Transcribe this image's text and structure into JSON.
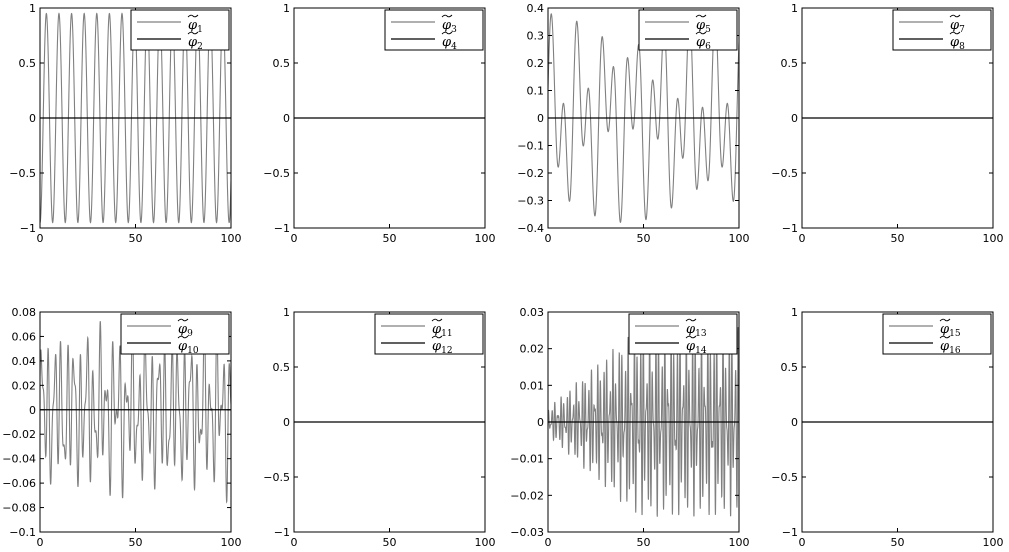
{
  "chart_data": [
    {
      "type": "line",
      "xlim": [
        0,
        100
      ],
      "ylim": [
        -1,
        1
      ],
      "yticks": [
        "1",
        "0.5",
        "0",
        "−0.5",
        "−1"
      ],
      "xticks": [
        "0",
        "50",
        "100"
      ],
      "legend_position": "top-right",
      "series": [
        {
          "name": "1",
          "color": "#808080",
          "kind": "sine",
          "amplitude": 0.95,
          "period": 6.6,
          "phase": -1.6
        },
        {
          "name": "2",
          "color": "#000000",
          "kind": "constant",
          "value": 0
        }
      ]
    },
    {
      "type": "line",
      "xlim": [
        0,
        100
      ],
      "ylim": [
        -1,
        1
      ],
      "yticks": [
        "1",
        "0.5",
        "0",
        "−0.5",
        "−1"
      ],
      "xticks": [
        "0",
        "50",
        "100"
      ],
      "legend_position": "top-right",
      "series": [
        {
          "name": "3",
          "color": "#808080",
          "kind": "constant",
          "value": 0
        },
        {
          "name": "4",
          "color": "#000000",
          "kind": "constant",
          "value": 0
        }
      ]
    },
    {
      "type": "line",
      "xlim": [
        0,
        100
      ],
      "ylim": [
        -0.4,
        0.4
      ],
      "yticks": [
        "0.4",
        "0.3",
        "0.2",
        "0.1",
        "0",
        "−0.1",
        "−0.2",
        "−0.3",
        "−0.4"
      ],
      "xticks": [
        "0",
        "50",
        "100"
      ],
      "legend_position": "top-right",
      "series": [
        {
          "name": "5",
          "color": "#808080",
          "kind": "beat",
          "amplitude": 0.38,
          "period": 6.6,
          "period2": 14.3
        },
        {
          "name": "6",
          "color": "#000000",
          "kind": "constant",
          "value": 0
        }
      ]
    },
    {
      "type": "line",
      "xlim": [
        0,
        100
      ],
      "ylim": [
        -1,
        1
      ],
      "yticks": [
        "1",
        "0.5",
        "0",
        "−0.5",
        "−1"
      ],
      "xticks": [
        "0",
        "50",
        "100"
      ],
      "legend_position": "top-right",
      "series": [
        {
          "name": "7",
          "color": "#808080",
          "kind": "constant",
          "value": 0
        },
        {
          "name": "8",
          "color": "#000000",
          "kind": "constant",
          "value": 0
        }
      ]
    },
    {
      "type": "line",
      "xlim": [
        0,
        100
      ],
      "ylim": [
        -0.1,
        0.08
      ],
      "yticks": [
        "0.08",
        "0.06",
        "0.04",
        "0.02",
        "0",
        "−0.02",
        "−0.04",
        "−0.06",
        "−0.08",
        "−0.1"
      ],
      "xticks": [
        "0",
        "50",
        "100"
      ],
      "legend_position": "top-right",
      "series": [
        {
          "name": "9",
          "color": "#808080",
          "kind": "noisy",
          "amplitude": 0.072,
          "period": 3.4
        },
        {
          "name": "10",
          "color": "#000000",
          "kind": "constant",
          "value": 0
        }
      ]
    },
    {
      "type": "line",
      "xlim": [
        0,
        100
      ],
      "ylim": [
        -1,
        1
      ],
      "yticks": [
        "1",
        "0.5",
        "0",
        "−0.5",
        "−1"
      ],
      "xticks": [
        "0",
        "50",
        "100"
      ],
      "legend_position": "top-right",
      "series": [
        {
          "name": "11",
          "color": "#808080",
          "kind": "constant",
          "value": 0
        },
        {
          "name": "12",
          "color": "#000000",
          "kind": "constant",
          "value": 0
        }
      ]
    },
    {
      "type": "line",
      "xlim": [
        0,
        100
      ],
      "ylim": [
        -0.03,
        0.03
      ],
      "yticks": [
        "0.03",
        "0.02",
        "0.01",
        "0",
        "−0.01",
        "−0.02",
        "−0.03"
      ],
      "xticks": [
        "0",
        "50",
        "100"
      ],
      "legend_position": "top-right",
      "series": [
        {
          "name": "13",
          "color": "#808080",
          "kind": "growing",
          "amplitude": 0.026,
          "period": 1.6
        },
        {
          "name": "14",
          "color": "#000000",
          "kind": "constant",
          "value": 0
        }
      ]
    },
    {
      "type": "line",
      "xlim": [
        0,
        100
      ],
      "ylim": [
        -1,
        1
      ],
      "yticks": [
        "1",
        "0.5",
        "0",
        "−0.5",
        "−1"
      ],
      "xticks": [
        "0",
        "50",
        "100"
      ],
      "legend_position": "top-right",
      "series": [
        {
          "name": "15",
          "color": "#808080",
          "kind": "constant",
          "value": 0
        },
        {
          "name": "16",
          "color": "#000000",
          "kind": "constant",
          "value": 0
        }
      ]
    }
  ]
}
